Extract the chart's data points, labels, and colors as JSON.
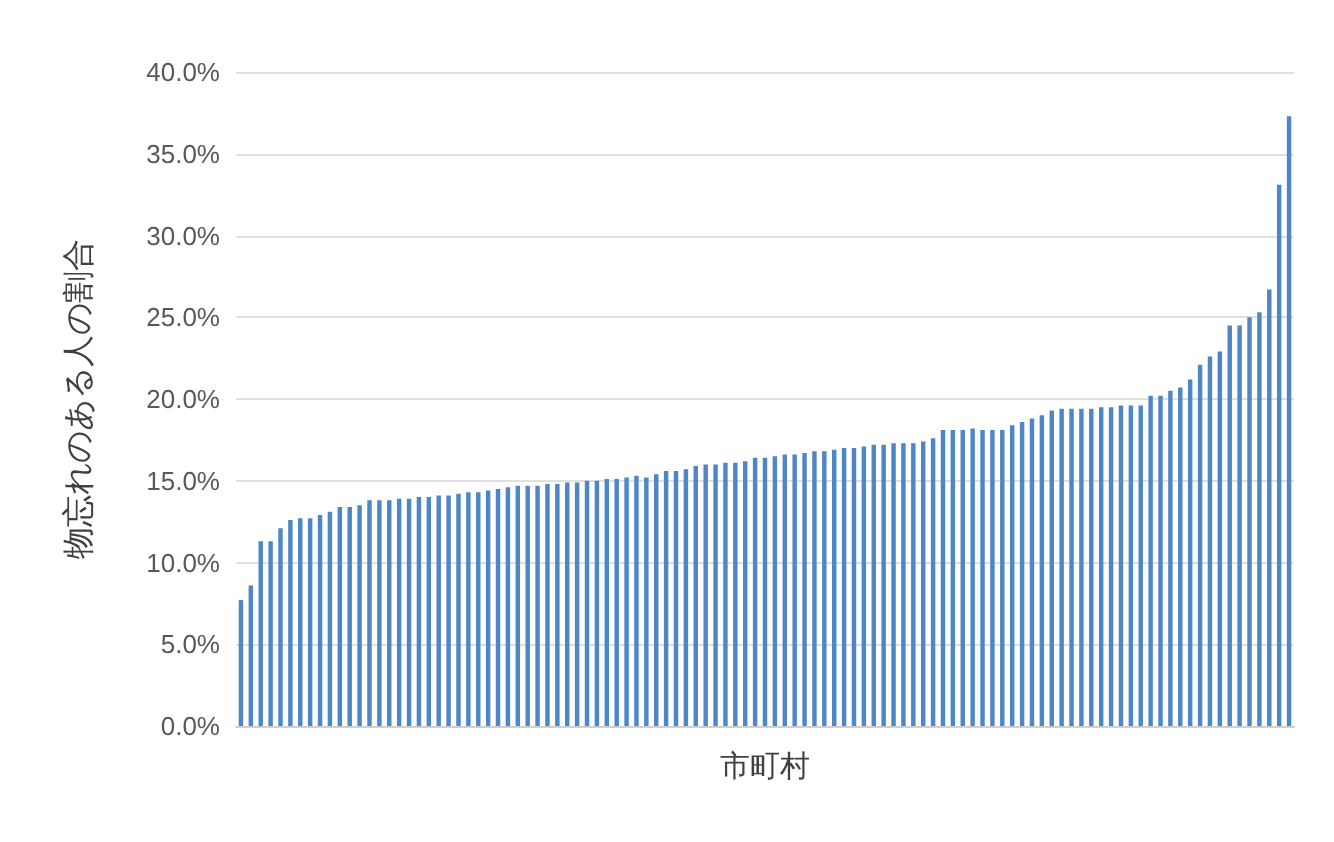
{
  "chart_data": {
    "type": "bar",
    "xlabel": "市町村",
    "ylabel": "物忘れのある人の割合",
    "categories": [
      null,
      null,
      null,
      null,
      null,
      null,
      null,
      null,
      null,
      null,
      null,
      null,
      null,
      null,
      null,
      null,
      null,
      null,
      null,
      null,
      null,
      null,
      null,
      null,
      null,
      null,
      null,
      null,
      null,
      null,
      null,
      null,
      null,
      null,
      null,
      null,
      null,
      null,
      null,
      null,
      null,
      null,
      null,
      null,
      null,
      null,
      null,
      null,
      null,
      null,
      null,
      null,
      null,
      null,
      null,
      null,
      null,
      null,
      null,
      null,
      null,
      null,
      null,
      null,
      null,
      null,
      null,
      null,
      null,
      null,
      null,
      null,
      null,
      null,
      null,
      null,
      null,
      null,
      null,
      null,
      null,
      null,
      null,
      null,
      null,
      null,
      null,
      null,
      null,
      null,
      null,
      null,
      null,
      null,
      null,
      null,
      null,
      null,
      null,
      null,
      null,
      null,
      null,
      null,
      null,
      null,
      null
    ],
    "values": [
      7.7,
      8.6,
      11.3,
      11.3,
      12.1,
      12.6,
      12.7,
      12.7,
      12.9,
      13.1,
      13.4,
      13.4,
      13.5,
      13.8,
      13.8,
      13.8,
      13.9,
      13.9,
      14.0,
      14.0,
      14.1,
      14.1,
      14.2,
      14.3,
      14.3,
      14.4,
      14.5,
      14.6,
      14.7,
      14.7,
      14.7,
      14.8,
      14.8,
      14.9,
      14.9,
      15.0,
      15.0,
      15.1,
      15.1,
      15.2,
      15.3,
      15.2,
      15.4,
      15.6,
      15.6,
      15.7,
      15.9,
      16.0,
      16.0,
      16.1,
      16.1,
      16.2,
      16.4,
      16.4,
      16.5,
      16.6,
      16.6,
      16.7,
      16.8,
      16.8,
      16.9,
      17.0,
      17.0,
      17.1,
      17.2,
      17.2,
      17.3,
      17.3,
      17.3,
      17.4,
      17.6,
      18.1,
      18.1,
      18.1,
      18.2,
      18.1,
      18.1,
      18.1,
      18.4,
      18.6,
      18.8,
      19.0,
      19.3,
      19.4,
      19.4,
      19.4,
      19.4,
      19.5,
      19.5,
      19.6,
      19.6,
      19.6,
      20.2,
      20.2,
      20.5,
      20.7,
      21.2,
      22.1,
      22.6,
      22.9,
      24.5,
      24.5,
      25.0,
      25.3,
      26.7,
      33.1,
      37.3
    ],
    "color": "#4f86c6",
    "ylim": [
      0,
      40
    ],
    "yticks": [
      {
        "value": 0,
        "label": "0.0%"
      },
      {
        "value": 5,
        "label": "5.0%"
      },
      {
        "value": 10,
        "label": "10.0%"
      },
      {
        "value": 15,
        "label": "15.0%"
      },
      {
        "value": 20,
        "label": "20.0%"
      },
      {
        "value": 25,
        "label": "25.0%"
      },
      {
        "value": 30,
        "label": "30.0%"
      },
      {
        "value": 35,
        "label": "35.0%"
      },
      {
        "value": 40,
        "label": "40.0%"
      }
    ],
    "grid": "y"
  }
}
